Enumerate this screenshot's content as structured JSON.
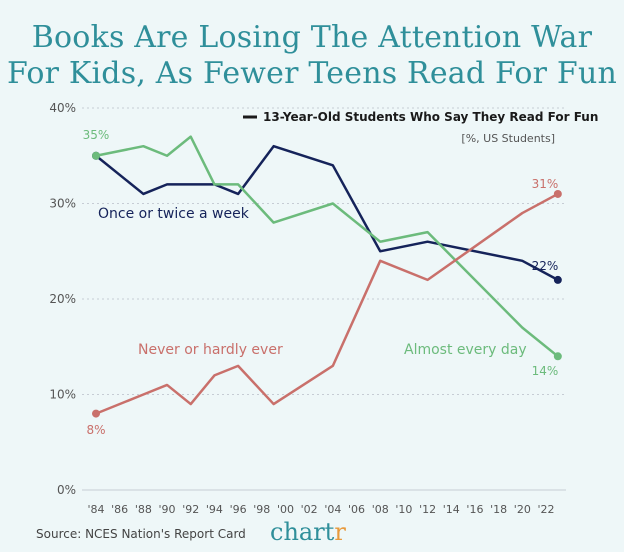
{
  "header": {
    "title_line1": "Books Are Losing The Attention War",
    "title_line2": "For Kids, As Fewer Teens Read For Fun"
  },
  "footer": {
    "source": "Source: NCES Nation's Report Card",
    "brand_main": "chart",
    "brand_accent": "r"
  },
  "colors": {
    "background": "#eef7f8",
    "title": "#2f8f9a",
    "navy": "#15235a",
    "green": "#6cbb7c",
    "red": "#c9706b",
    "grid": "#c6ccd4",
    "axis_text": "#555555"
  },
  "chart_data": {
    "type": "line",
    "legend_title": "13-Year-Old Students Who Say They Read For Fun",
    "legend_subtitle": "[%, US Students]",
    "x": [
      1984,
      1988,
      1990,
      1992,
      1994,
      1996,
      1999,
      2004,
      2008,
      2012,
      2020,
      2023
    ],
    "x_ticks": [
      "'84",
      "'86",
      "'88",
      "'90",
      "'92",
      "'94",
      "'96",
      "'98",
      "'00",
      "'02",
      "'04",
      "'06",
      "'08",
      "'10",
      "'12",
      "'14",
      "'16",
      "'18",
      "'20",
      "'22"
    ],
    "y_ticks": [
      "0%",
      "10%",
      "20%",
      "30%",
      "40%"
    ],
    "ylim": [
      0,
      40
    ],
    "grid": true,
    "series": [
      {
        "name": "Once or twice a week",
        "color": "#15235a",
        "values": [
          35,
          31,
          32,
          32,
          32,
          31,
          36,
          34,
          25,
          26,
          24,
          22
        ]
      },
      {
        "name": "Almost every day",
        "color": "#6cbb7c",
        "values": [
          35,
          36,
          35,
          37,
          32,
          32,
          28,
          30,
          26,
          27,
          17,
          14
        ]
      },
      {
        "name": "Never or hardly ever",
        "color": "#c9706b",
        "values": [
          8,
          10,
          11,
          9,
          12,
          13,
          9,
          13,
          24,
          22,
          29,
          31
        ]
      }
    ],
    "annotations": [
      {
        "text": "35%",
        "series": 1
      },
      {
        "text": "8%",
        "series": 2
      },
      {
        "text": "31%",
        "series": 2
      },
      {
        "text": "22%",
        "series": 0
      },
      {
        "text": "14%",
        "series": 1
      }
    ]
  }
}
